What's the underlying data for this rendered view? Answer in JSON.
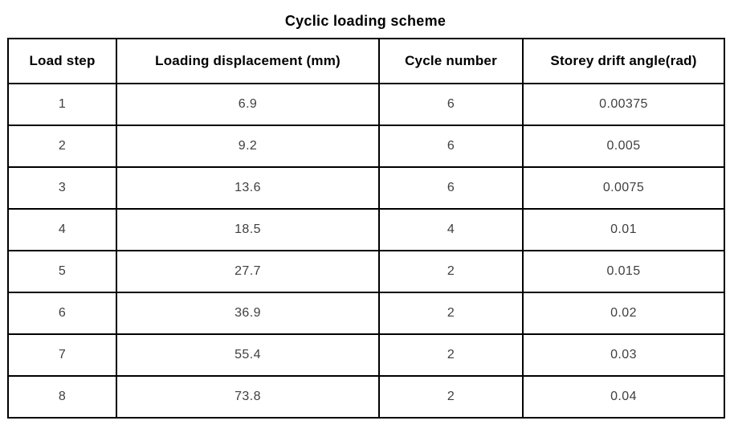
{
  "title": "Cyclic loading scheme",
  "table": {
    "columns": [
      "Load step",
      "Loading displacement (mm)",
      "Cycle number",
      "Storey drift angle(rad)"
    ],
    "rows": [
      [
        "1",
        "6.9",
        "6",
        "0.00375"
      ],
      [
        "2",
        "9.2",
        "6",
        "0.005"
      ],
      [
        "3",
        "13.6",
        "6",
        "0.0075"
      ],
      [
        "4",
        "18.5",
        "4",
        "0.01"
      ],
      [
        "5",
        "27.7",
        "2",
        "0.015"
      ],
      [
        "6",
        "36.9",
        "2",
        "0.02"
      ],
      [
        "7",
        "55.4",
        "2",
        "0.03"
      ],
      [
        "8",
        "73.8",
        "2",
        "0.04"
      ]
    ]
  },
  "colors": {
    "background": "#ffffff",
    "border": "#000000",
    "header_text": "#000000",
    "cell_text": "#3f3f3f"
  },
  "chart_data": {
    "type": "table",
    "title": "Cyclic loading scheme",
    "columns": [
      "Load step",
      "Loading displacement (mm)",
      "Cycle number",
      "Storey drift angle(rad)"
    ],
    "rows": [
      {
        "load_step": 1,
        "loading_displacement_mm": 6.9,
        "cycle_number": 6,
        "storey_drift_angle_rad": 0.00375
      },
      {
        "load_step": 2,
        "loading_displacement_mm": 9.2,
        "cycle_number": 6,
        "storey_drift_angle_rad": 0.005
      },
      {
        "load_step": 3,
        "loading_displacement_mm": 13.6,
        "cycle_number": 6,
        "storey_drift_angle_rad": 0.0075
      },
      {
        "load_step": 4,
        "loading_displacement_mm": 18.5,
        "cycle_number": 4,
        "storey_drift_angle_rad": 0.01
      },
      {
        "load_step": 5,
        "loading_displacement_mm": 27.7,
        "cycle_number": 2,
        "storey_drift_angle_rad": 0.015
      },
      {
        "load_step": 6,
        "loading_displacement_mm": 36.9,
        "cycle_number": 2,
        "storey_drift_angle_rad": 0.02
      },
      {
        "load_step": 7,
        "loading_displacement_mm": 55.4,
        "cycle_number": 2,
        "storey_drift_angle_rad": 0.03
      },
      {
        "load_step": 8,
        "loading_displacement_mm": 73.8,
        "cycle_number": 2,
        "storey_drift_angle_rad": 0.04
      }
    ]
  }
}
